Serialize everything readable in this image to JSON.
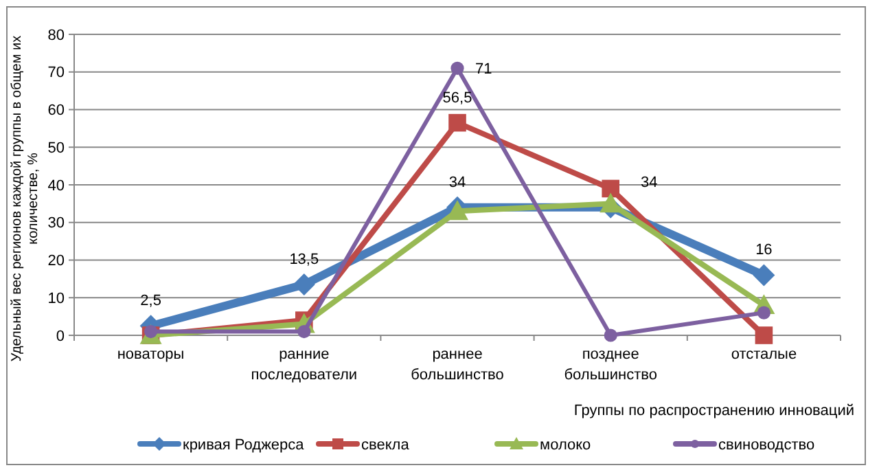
{
  "chart_data": {
    "type": "line",
    "ylabel": "Удельный вес регионов каждой группы в  общем их количестве,  %",
    "xlabel": "Группы по распространению инноваций",
    "categories": [
      "новаторы",
      "ранние последователи",
      "раннее большинство",
      "позднее большинство",
      "отсталые"
    ],
    "ylim": [
      0,
      80
    ],
    "yticks": [
      0,
      10,
      20,
      30,
      40,
      50,
      60,
      70,
      80
    ],
    "grid": "y",
    "legend": "bottom",
    "series": [
      {
        "name": "кривая Роджерса",
        "color": "#4a7ebb",
        "marker": "diamond",
        "values": [
          2.5,
          13.5,
          34,
          34,
          16
        ],
        "value_labels": [
          "2,5",
          "13,5",
          "34",
          "34",
          "16"
        ]
      },
      {
        "name": "свекла",
        "color": "#be4b48",
        "marker": "square",
        "values": [
          0,
          4,
          56.5,
          39,
          0
        ],
        "value_labels": [
          null,
          null,
          "56,5",
          null,
          null
        ]
      },
      {
        "name": "молоко",
        "color": "#98b954",
        "marker": "triangle",
        "values": [
          0,
          3,
          33,
          35,
          8
        ]
      },
      {
        "name": "свиноводство",
        "color": "#7d60a0",
        "marker": "circle",
        "values": [
          1,
          1,
          71,
          0,
          6
        ],
        "value_labels": [
          null,
          null,
          "71",
          null,
          null
        ]
      }
    ]
  }
}
